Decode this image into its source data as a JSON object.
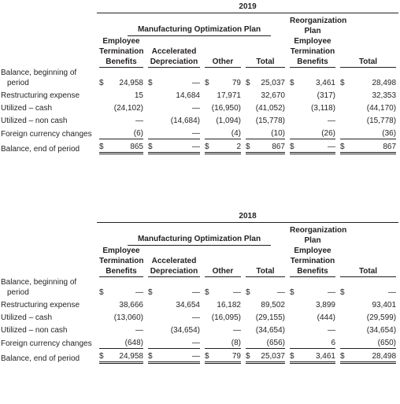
{
  "tables": [
    {
      "year": "2019",
      "groups": [
        "Manufacturing Optimization Plan",
        "Reorganization Plan"
      ],
      "columns": [
        [
          "Employee",
          "Termination",
          "Benefits"
        ],
        [
          "Accelerated",
          "Depreciation"
        ],
        [
          "Other"
        ],
        [
          "Total"
        ],
        [
          "Employee",
          "Termination",
          "Benefits"
        ],
        [
          "Total"
        ]
      ],
      "rows": [
        {
          "label": "Balance, beginning of period",
          "cells": [
            {
              "sign": "$",
              "value": "24,958"
            },
            {
              "sign": "$",
              "value": "—"
            },
            {
              "sign": "$",
              "value": "79"
            },
            {
              "sign": "$",
              "value": "25,037"
            },
            {
              "sign": "$",
              "value": "3,461"
            },
            {
              "sign": "$",
              "value": "28,498"
            }
          ]
        },
        {
          "label": "Restructuring expense",
          "cells": [
            {
              "value": "15"
            },
            {
              "value": "14,684"
            },
            {
              "value": "17,971"
            },
            {
              "value": "32,670"
            },
            {
              "value": "(317)"
            },
            {
              "value": "32,353"
            }
          ]
        },
        {
          "label": "Utilized – cash",
          "cells": [
            {
              "value": "(24,102)"
            },
            {
              "value": "—"
            },
            {
              "value": "(16,950)"
            },
            {
              "value": "(41,052)"
            },
            {
              "value": "(3,118)"
            },
            {
              "value": "(44,170)"
            }
          ]
        },
        {
          "label": "Utilized – non cash",
          "cells": [
            {
              "value": "—"
            },
            {
              "value": "(14,684)"
            },
            {
              "value": "(1,094)"
            },
            {
              "value": "(15,778)"
            },
            {
              "value": "—"
            },
            {
              "value": "(15,778)"
            }
          ]
        },
        {
          "label": "Foreign currency changes",
          "cells": [
            {
              "value": "(6)"
            },
            {
              "value": "—"
            },
            {
              "value": "(4)"
            },
            {
              "value": "(10)"
            },
            {
              "value": "(26)"
            },
            {
              "value": "(36)"
            }
          ]
        },
        {
          "label": "Balance, end of period",
          "cells": [
            {
              "sign": "$",
              "value": "865"
            },
            {
              "sign": "$",
              "value": "—"
            },
            {
              "sign": "$",
              "value": "2"
            },
            {
              "sign": "$",
              "value": "867"
            },
            {
              "sign": "$",
              "value": "—"
            },
            {
              "sign": "$",
              "value": "867"
            }
          ]
        }
      ]
    },
    {
      "year": "2018",
      "groups": [
        "Manufacturing Optimization Plan",
        "Reorganization Plan"
      ],
      "columns": [
        [
          "Employee",
          "Termination",
          "Benefits"
        ],
        [
          "Accelerated",
          "Depreciation"
        ],
        [
          "Other"
        ],
        [
          "Total"
        ],
        [
          "Employee",
          "Termination",
          "Benefits"
        ],
        [
          "Total"
        ]
      ],
      "rows": [
        {
          "label": "Balance, beginning of period",
          "cells": [
            {
              "sign": "$",
              "value": "—"
            },
            {
              "sign": "$",
              "value": "—"
            },
            {
              "sign": "$",
              "value": "—"
            },
            {
              "sign": "$",
              "value": "—"
            },
            {
              "sign": "$",
              "value": "—"
            },
            {
              "sign": "$",
              "value": "—"
            }
          ]
        },
        {
          "label": "Restructuring expense",
          "cells": [
            {
              "value": "38,666"
            },
            {
              "value": "34,654"
            },
            {
              "value": "16,182"
            },
            {
              "value": "89,502"
            },
            {
              "value": "3,899"
            },
            {
              "value": "93,401"
            }
          ]
        },
        {
          "label": "Utilized – cash",
          "cells": [
            {
              "value": "(13,060)"
            },
            {
              "value": "—"
            },
            {
              "value": "(16,095)"
            },
            {
              "value": "(29,155)"
            },
            {
              "value": "(444)"
            },
            {
              "value": "(29,599)"
            }
          ]
        },
        {
          "label": "Utilized – non cash",
          "cells": [
            {
              "value": "—"
            },
            {
              "value": "(34,654)"
            },
            {
              "value": "—"
            },
            {
              "value": "(34,654)"
            },
            {
              "value": "—"
            },
            {
              "value": "(34,654)"
            }
          ]
        },
        {
          "label": "Foreign currency changes",
          "cells": [
            {
              "value": "(648)"
            },
            {
              "value": "—"
            },
            {
              "value": "(8)"
            },
            {
              "value": "(656)"
            },
            {
              "value": "6"
            },
            {
              "value": "(650)"
            }
          ]
        },
        {
          "label": "Balance, end of period",
          "cells": [
            {
              "sign": "$",
              "value": "24,958"
            },
            {
              "sign": "$",
              "value": "—"
            },
            {
              "sign": "$",
              "value": "79"
            },
            {
              "sign": "$",
              "value": "25,037"
            },
            {
              "sign": "$",
              "value": "3,461"
            },
            {
              "sign": "$",
              "value": "28,498"
            }
          ]
        }
      ]
    }
  ]
}
